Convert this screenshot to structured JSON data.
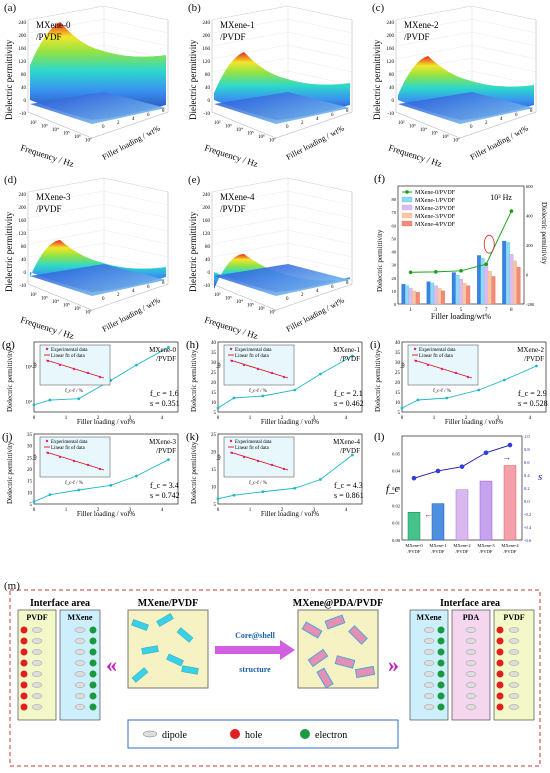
{
  "panel_labels": [
    "(a)",
    "(b)",
    "(c)",
    "(d)",
    "(e)",
    "(f)",
    "(g)",
    "(h)",
    "(i)",
    "(j)",
    "(k)",
    "(l)",
    "(m)"
  ],
  "surface_panels": [
    {
      "label": "(a)",
      "sample": "MXene-0",
      "matrix": "/PVDF"
    },
    {
      "label": "(b)",
      "sample": "MXene-1",
      "matrix": "/PVDF"
    },
    {
      "label": "(c)",
      "sample": "MXene-2",
      "matrix": "/PVDF"
    },
    {
      "label": "(d)",
      "sample": "MXene-3",
      "matrix": "/PVDF"
    },
    {
      "label": "(e)",
      "sample": "MXene-4",
      "matrix": "/PVDF"
    }
  ],
  "surface_axes": {
    "z": "Dielectric permittivity",
    "x": "Frequency / Hz",
    "y": "Filler loading / wt%"
  },
  "surface_zticks": [
    "240",
    "200",
    "160",
    "120",
    "80",
    "40",
    "0",
    "-10"
  ],
  "surface_xticks": [
    "10²",
    "10³",
    "10⁴",
    "10⁵",
    "10⁶",
    "10⁷"
  ],
  "surface_yticks": [
    "0",
    "2",
    "4",
    "6",
    "8"
  ],
  "panel_f": {
    "legend": [
      "MXene-0/PVDF",
      "MXene-1/PVDF",
      "MXene-2/PVDF",
      "MXene-3/PVDF",
      "MXene-4/PVDF"
    ],
    "annotation": "10³ Hz",
    "ylabel_left": "Dielectric permittivity",
    "ylabel_right": "Dielectric permittivity",
    "xlabel": "Filler loading/wt%"
  },
  "fit_axes": {
    "xlabel": "Filler loading / vol%",
    "ylabel": "Dielectric permittivity",
    "inset_legend": [
      "Experimental data",
      "Linear fit of data"
    ],
    "inset_xlabel": "f_c-f / %",
    "inset_ylabel": "lgε"
  },
  "fit_panels": [
    {
      "label": "(g)",
      "sample": "MXene-0",
      "matrix": "/PVDF",
      "fc": "f_c = 1.6",
      "s": "s = 0.351"
    },
    {
      "label": "(h)",
      "sample": "MXene-1",
      "matrix": "/PVDF",
      "fc": "f_c = 2.1",
      "s": "s = 0.462"
    },
    {
      "label": "(i)",
      "sample": "MXene-2",
      "matrix": "/PVDF",
      "fc": "f_c = 2.9",
      "s": "s = 0.528"
    },
    {
      "label": "(j)",
      "sample": "MXene-3",
      "matrix": "/PVDF",
      "fc": "f_c = 3.4",
      "s": "s = 0.742"
    },
    {
      "label": "(k)",
      "sample": "MXene-4",
      "matrix": "/PVDF",
      "fc": "f_c = 4.3",
      "s": "s = 0.861"
    }
  ],
  "chart_data": [
    {
      "type": "bar",
      "panel": "(f)",
      "categories": [
        "1",
        "3",
        "5",
        "7",
        "8"
      ],
      "series": [
        {
          "name": "MXene-0/PVDF",
          "values": [
            15,
            17,
            24,
            37,
            48
          ]
        },
        {
          "name": "MXene-1/PVDF",
          "values": [
            14,
            16,
            22,
            35,
            47
          ]
        },
        {
          "name": "MXene-2/PVDF",
          "values": [
            12,
            14,
            19,
            31,
            38
          ]
        },
        {
          "name": "MXene-3/PVDF",
          "values": [
            10,
            12,
            16,
            25,
            33
          ]
        },
        {
          "name": "MXene-4/PVDF",
          "values": [
            9,
            10,
            14,
            21,
            28
          ]
        }
      ],
      "line_series": {
        "name": "MXene-0/PVDF",
        "values": [
          15,
          18,
          25,
          70,
          430
        ]
      },
      "xlabel": "Filler loading/wt%",
      "ylabel": "Dielectric permittivity",
      "ylim": [
        0,
        90
      ],
      "ylim_right": [
        -200,
        600
      ]
    },
    {
      "type": "line",
      "panel": "(g)",
      "x": [
        0,
        0.5,
        1.4,
        2.4,
        3.2,
        4.2
      ],
      "y": [
        8,
        11,
        12,
        40,
        110,
        350
      ],
      "log_y": true,
      "xlim": [
        0,
        4.5
      ]
    },
    {
      "type": "line",
      "panel": "(h)",
      "x": [
        0,
        0.5,
        1.4,
        2.4,
        3.2,
        4.2
      ],
      "y": [
        7,
        12,
        13,
        16,
        24,
        33
      ],
      "xlim": [
        0,
        4.5
      ],
      "ylim": [
        5,
        40
      ]
    },
    {
      "type": "line",
      "panel": "(i)",
      "x": [
        0,
        0.5,
        1.4,
        2.4,
        3.2,
        4.2
      ],
      "y": [
        7,
        11,
        12,
        16,
        21,
        28
      ],
      "xlim": [
        0,
        4.5
      ],
      "ylim": [
        5,
        40
      ]
    },
    {
      "type": "line",
      "panel": "(j)",
      "x": [
        0,
        0.5,
        1.4,
        2.4,
        3.2,
        4.2
      ],
      "y": [
        6,
        9,
        11,
        13,
        17,
        24
      ],
      "xlim": [
        0,
        4.5
      ],
      "ylim": [
        5,
        35
      ]
    },
    {
      "type": "line",
      "panel": "(k)",
      "x": [
        0,
        0.5,
        1.4,
        2.4,
        3.2,
        4.2
      ],
      "y": [
        6.5,
        7.5,
        8.5,
        9.5,
        12,
        19
      ],
      "xlim": [
        0,
        4.5
      ],
      "ylim": [
        5,
        25
      ]
    },
    {
      "type": "bar",
      "panel": "(l)",
      "categories": [
        "MXene-0/PVDF",
        "MXene-1/PVDF",
        "MXene-2/PVDF",
        "MXene-3/PVDF",
        "MXene-4/PVDF"
      ],
      "values": [
        0.016,
        0.021,
        0.029,
        0.034,
        0.043
      ],
      "line_values": [
        0.351,
        0.462,
        0.528,
        0.742,
        0.861
      ],
      "ylabel": "f_c",
      "ylabel_right": "s",
      "ylim": [
        0,
        0.06
      ],
      "ylim_right": [
        -0.6,
        1.0
      ]
    }
  ],
  "schematic": {
    "left_title": "Interface area",
    "left_cols": [
      "PVDF",
      "MXene"
    ],
    "center_left": "MXene/PVDF",
    "arrow_label": "Core@shell structure",
    "center_right": "MXene@PDA/PVDF",
    "right_title": "Interface area",
    "right_cols": [
      "MXene",
      "PDA",
      "PVDF"
    ],
    "legend": [
      "dipole",
      "hole",
      "electron"
    ]
  }
}
